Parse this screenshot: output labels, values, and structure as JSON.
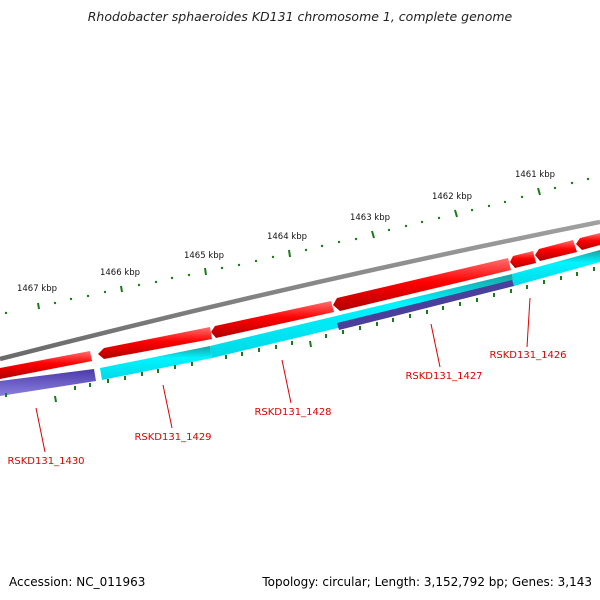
{
  "title": "Rhodobacter sphaeroides KD131 chromosome 1, complete genome",
  "footer": {
    "accession": "Accession: NC_011963",
    "summary": "Topology: circular; Length: 3,152,792 bp; Genes: 3,143"
  },
  "colors": {
    "backbone": "#808080",
    "gene_forward": "#e01010",
    "gene_cds": "#00e8f0",
    "gene_other": "#5a4fbf",
    "tick": "#1a7a1a",
    "gene_label": "#dd0000"
  },
  "scale": {
    "tick_labels": [
      "1461 kbp",
      "1462 kbp",
      "1463 kbp",
      "1464 kbp",
      "1465 kbp",
      "1466 kbp",
      "1467 kbp"
    ]
  },
  "gene_labels": [
    "RSKD131_1426",
    "RSKD131_1427",
    "RSKD131_1428",
    "RSKD131_1429",
    "RSKD131_1430"
  ]
}
